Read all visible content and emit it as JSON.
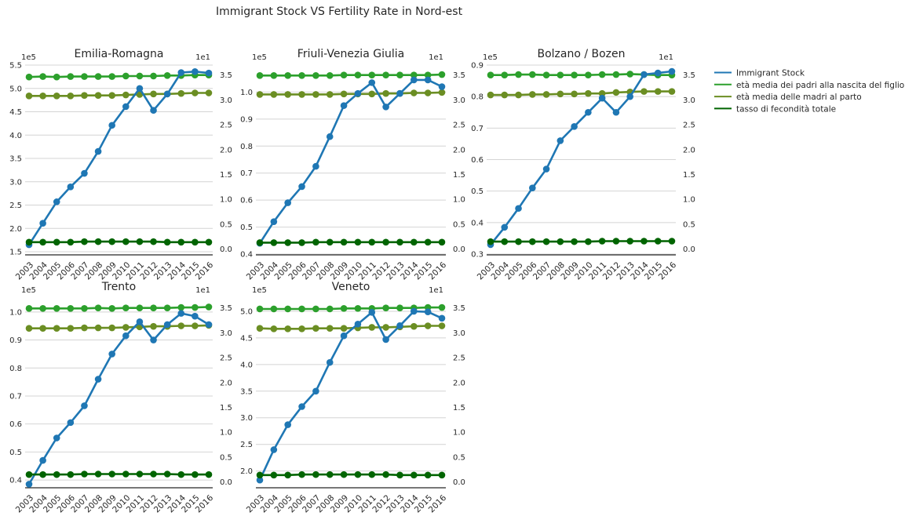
{
  "figure_title": "Immigrant Stock VS Fertility Rate in Nord-est",
  "legend": [
    {
      "label": "Immigrant Stock",
      "color": "#1f77b4"
    },
    {
      "label": "età media dei padri alla nascita del figlio",
      "color": "#2ca02c"
    },
    {
      "label": "età media delle madri al parto",
      "color": "#6b8e23"
    },
    {
      "label": "tasso di fecondità totale",
      "color": "#006400"
    }
  ],
  "chart_data": [
    {
      "type": "line",
      "title": "Emilia-Romagna",
      "x": [
        "2003",
        "2004",
        "2005",
        "2006",
        "2007",
        "2008",
        "2009",
        "2010",
        "2011",
        "2012",
        "2013",
        "2014",
        "2015",
        "2016"
      ],
      "left_axis": {
        "multiplier": "1e5",
        "ylim": [
          1.45,
          5.5
        ],
        "ticks": [
          "1.5",
          "2.0",
          "2.5",
          "3.0",
          "3.5",
          "4.0",
          "4.5",
          "5.0",
          "5.5"
        ]
      },
      "right_axis": {
        "multiplier": "1e1",
        "ylim": [
          -0.1,
          3.7
        ],
        "ticks": [
          "0.0",
          "0.5",
          "1.0",
          "1.5",
          "2.0",
          "2.5",
          "3.0",
          "3.5"
        ]
      },
      "series": [
        {
          "name": "Immigrant Stock",
          "axis": "left",
          "color": "#1f77b4",
          "values": [
            1.65,
            2.11,
            2.57,
            2.89,
            3.18,
            3.65,
            4.21,
            4.61,
            5.0,
            4.53,
            4.88,
            5.34,
            5.36,
            5.33
          ]
        },
        {
          "name": "età media dei padri alla nascita del figlio",
          "axis": "right",
          "color": "#2ca02c",
          "values": [
            3.46,
            3.47,
            3.46,
            3.47,
            3.47,
            3.47,
            3.47,
            3.48,
            3.48,
            3.48,
            3.49,
            3.49,
            3.5,
            3.5
          ]
        },
        {
          "name": "età media delle madri al parto",
          "axis": "right",
          "color": "#6b8e23",
          "values": [
            3.08,
            3.08,
            3.08,
            3.08,
            3.09,
            3.09,
            3.09,
            3.1,
            3.11,
            3.12,
            3.12,
            3.13,
            3.14,
            3.14
          ]
        },
        {
          "name": "tasso di fecondità totale",
          "axis": "right",
          "color": "#006400",
          "values": [
            0.14,
            0.14,
            0.14,
            0.14,
            0.15,
            0.15,
            0.15,
            0.15,
            0.15,
            0.15,
            0.14,
            0.14,
            0.14,
            0.14
          ]
        }
      ]
    },
    {
      "type": "line",
      "title": "Friuli-Venezia Giulia",
      "x": [
        "2003",
        "2004",
        "2005",
        "2006",
        "2007",
        "2008",
        "2009",
        "2010",
        "2011",
        "2012",
        "2013",
        "2014",
        "2015",
        "2016"
      ],
      "left_axis": {
        "multiplier": "1e5",
        "ylim": [
          0.4,
          1.1
        ],
        "ticks": [
          "0.4",
          "0.5",
          "0.6",
          "0.7",
          "0.8",
          "0.9",
          "1.0"
        ]
      },
      "right_axis": {
        "multiplier": "1e1",
        "ylim": [
          -0.1,
          3.7
        ],
        "ticks": [
          "0.0",
          "0.5",
          "1.0",
          "1.5",
          "2.0",
          "2.5",
          "3.0",
          "3.5"
        ]
      },
      "series": [
        {
          "name": "Immigrant Stock",
          "axis": "left",
          "color": "#1f77b4",
          "values": [
            0.44,
            0.52,
            0.59,
            0.65,
            0.725,
            0.835,
            0.95,
            0.995,
            1.035,
            0.945,
            0.995,
            1.045,
            1.045,
            1.02
          ]
        },
        {
          "name": "età media dei padri alla nascita del figlio",
          "axis": "right",
          "color": "#2ca02c",
          "values": [
            3.49,
            3.49,
            3.49,
            3.49,
            3.49,
            3.49,
            3.5,
            3.5,
            3.5,
            3.5,
            3.5,
            3.5,
            3.5,
            3.51
          ]
        },
        {
          "name": "età media delle madri al parto",
          "axis": "right",
          "color": "#6b8e23",
          "values": [
            3.11,
            3.11,
            3.11,
            3.11,
            3.11,
            3.11,
            3.12,
            3.12,
            3.12,
            3.13,
            3.13,
            3.14,
            3.14,
            3.15
          ]
        },
        {
          "name": "tasso di fecondità totale",
          "axis": "right",
          "color": "#006400",
          "values": [
            0.13,
            0.13,
            0.13,
            0.13,
            0.14,
            0.14,
            0.14,
            0.14,
            0.14,
            0.14,
            0.14,
            0.14,
            0.14,
            0.14
          ]
        }
      ]
    },
    {
      "type": "line",
      "title": "Bolzano / Bozen",
      "x": [
        "2003",
        "2004",
        "2005",
        "2006",
        "2007",
        "2008",
        "2009",
        "2010",
        "2011",
        "2012",
        "2013",
        "2014",
        "2015",
        "2016"
      ],
      "left_axis": {
        "multiplier": "1e5",
        "ylim": [
          0.3,
          0.9
        ],
        "ticks": [
          "0.3",
          "0.4",
          "0.5",
          "0.6",
          "0.7",
          "0.8",
          "0.9"
        ]
      },
      "right_axis": {
        "multiplier": "1e1",
        "ylim": [
          -0.1,
          3.7
        ],
        "ticks": [
          "0.0",
          "0.5",
          "1.0",
          "1.5",
          "2.0",
          "2.5",
          "3.0",
          "3.5"
        ]
      },
      "series": [
        {
          "name": "Immigrant Stock",
          "axis": "left",
          "color": "#1f77b4",
          "values": [
            0.33,
            0.385,
            0.445,
            0.51,
            0.57,
            0.66,
            0.705,
            0.75,
            0.795,
            0.75,
            0.8,
            0.87,
            0.875,
            0.88
          ]
        },
        {
          "name": "età media dei padri alla nascita del figlio",
          "axis": "right",
          "color": "#2ca02c",
          "values": [
            3.5,
            3.5,
            3.51,
            3.51,
            3.5,
            3.5,
            3.5,
            3.5,
            3.51,
            3.51,
            3.52,
            3.51,
            3.5,
            3.5
          ]
        },
        {
          "name": "età media delle madri al parto",
          "axis": "right",
          "color": "#6b8e23",
          "values": [
            3.1,
            3.1,
            3.1,
            3.11,
            3.11,
            3.12,
            3.12,
            3.13,
            3.13,
            3.15,
            3.16,
            3.17,
            3.17,
            3.17
          ]
        },
        {
          "name": "tasso di fecondità totale",
          "axis": "right",
          "color": "#006400",
          "values": [
            0.15,
            0.15,
            0.15,
            0.15,
            0.15,
            0.15,
            0.15,
            0.15,
            0.16,
            0.16,
            0.16,
            0.16,
            0.16,
            0.16
          ]
        }
      ]
    },
    {
      "type": "line",
      "title": "Trento",
      "x": [
        "2003",
        "2004",
        "2005",
        "2006",
        "2007",
        "2008",
        "2009",
        "2010",
        "2011",
        "2012",
        "2013",
        "2014",
        "2015",
        "2016"
      ],
      "left_axis": {
        "multiplier": "1e5",
        "ylim": [
          0.375,
          1.05
        ],
        "ticks": [
          "0.4",
          "0.5",
          "0.6",
          "0.7",
          "0.8",
          "0.9",
          "1.0"
        ]
      },
      "right_axis": {
        "multiplier": "1e1",
        "ylim": [
          -0.1,
          3.7
        ],
        "ticks": [
          "0.0",
          "0.5",
          "1.0",
          "1.5",
          "2.0",
          "2.5",
          "3.0",
          "3.5"
        ]
      },
      "series": [
        {
          "name": "Immigrant Stock",
          "axis": "left",
          "color": "#1f77b4",
          "values": [
            0.385,
            0.47,
            0.55,
            0.605,
            0.665,
            0.76,
            0.85,
            0.915,
            0.965,
            0.9,
            0.955,
            0.995,
            0.985,
            0.955
          ]
        },
        {
          "name": "età media dei padri alla nascita del figlio",
          "axis": "right",
          "color": "#2ca02c",
          "values": [
            3.49,
            3.49,
            3.49,
            3.49,
            3.49,
            3.5,
            3.49,
            3.5,
            3.5,
            3.5,
            3.5,
            3.51,
            3.51,
            3.52
          ]
        },
        {
          "name": "età media delle madri al parto",
          "axis": "right",
          "color": "#6b8e23",
          "values": [
            3.09,
            3.09,
            3.09,
            3.09,
            3.1,
            3.1,
            3.1,
            3.11,
            3.12,
            3.13,
            3.13,
            3.14,
            3.14,
            3.15
          ]
        },
        {
          "name": "tasso di fecondità totale",
          "axis": "right",
          "color": "#006400",
          "values": [
            0.15,
            0.15,
            0.15,
            0.15,
            0.16,
            0.16,
            0.16,
            0.16,
            0.16,
            0.16,
            0.16,
            0.15,
            0.15,
            0.15
          ]
        }
      ]
    },
    {
      "type": "line",
      "title": "Veneto",
      "x": [
        "2003",
        "2004",
        "2005",
        "2006",
        "2007",
        "2008",
        "2009",
        "2010",
        "2011",
        "2012",
        "2013",
        "2014",
        "2015",
        "2016"
      ],
      "left_axis": {
        "multiplier": "1e5",
        "ylim": [
          1.7,
          5.25
        ],
        "ticks": [
          "2.0",
          "2.5",
          "3.0",
          "3.5",
          "4.0",
          "4.5",
          "5.0"
        ]
      },
      "right_axis": {
        "multiplier": "1e1",
        "ylim": [
          -0.1,
          3.7
        ],
        "ticks": [
          "0.0",
          "0.5",
          "1.0",
          "1.5",
          "2.0",
          "2.5",
          "3.0",
          "3.5"
        ]
      },
      "series": [
        {
          "name": "Immigrant Stock",
          "axis": "left",
          "color": "#1f77b4",
          "values": [
            1.83,
            2.4,
            2.87,
            3.21,
            3.5,
            4.04,
            4.54,
            4.76,
            4.98,
            4.47,
            4.73,
            5.0,
            4.99,
            4.87
          ]
        },
        {
          "name": "età media dei padri alla nascita del figlio",
          "axis": "right",
          "color": "#2ca02c",
          "values": [
            3.48,
            3.48,
            3.48,
            3.48,
            3.48,
            3.48,
            3.49,
            3.49,
            3.49,
            3.5,
            3.5,
            3.5,
            3.51,
            3.51
          ]
        },
        {
          "name": "età media delle madri al parto",
          "axis": "right",
          "color": "#6b8e23",
          "values": [
            3.09,
            3.08,
            3.08,
            3.08,
            3.09,
            3.09,
            3.09,
            3.1,
            3.11,
            3.11,
            3.12,
            3.13,
            3.14,
            3.14
          ]
        },
        {
          "name": "tasso di fecondità totale",
          "axis": "right",
          "color": "#006400",
          "values": [
            0.14,
            0.14,
            0.14,
            0.15,
            0.15,
            0.15,
            0.15,
            0.15,
            0.15,
            0.15,
            0.14,
            0.14,
            0.14,
            0.14
          ]
        }
      ]
    }
  ]
}
